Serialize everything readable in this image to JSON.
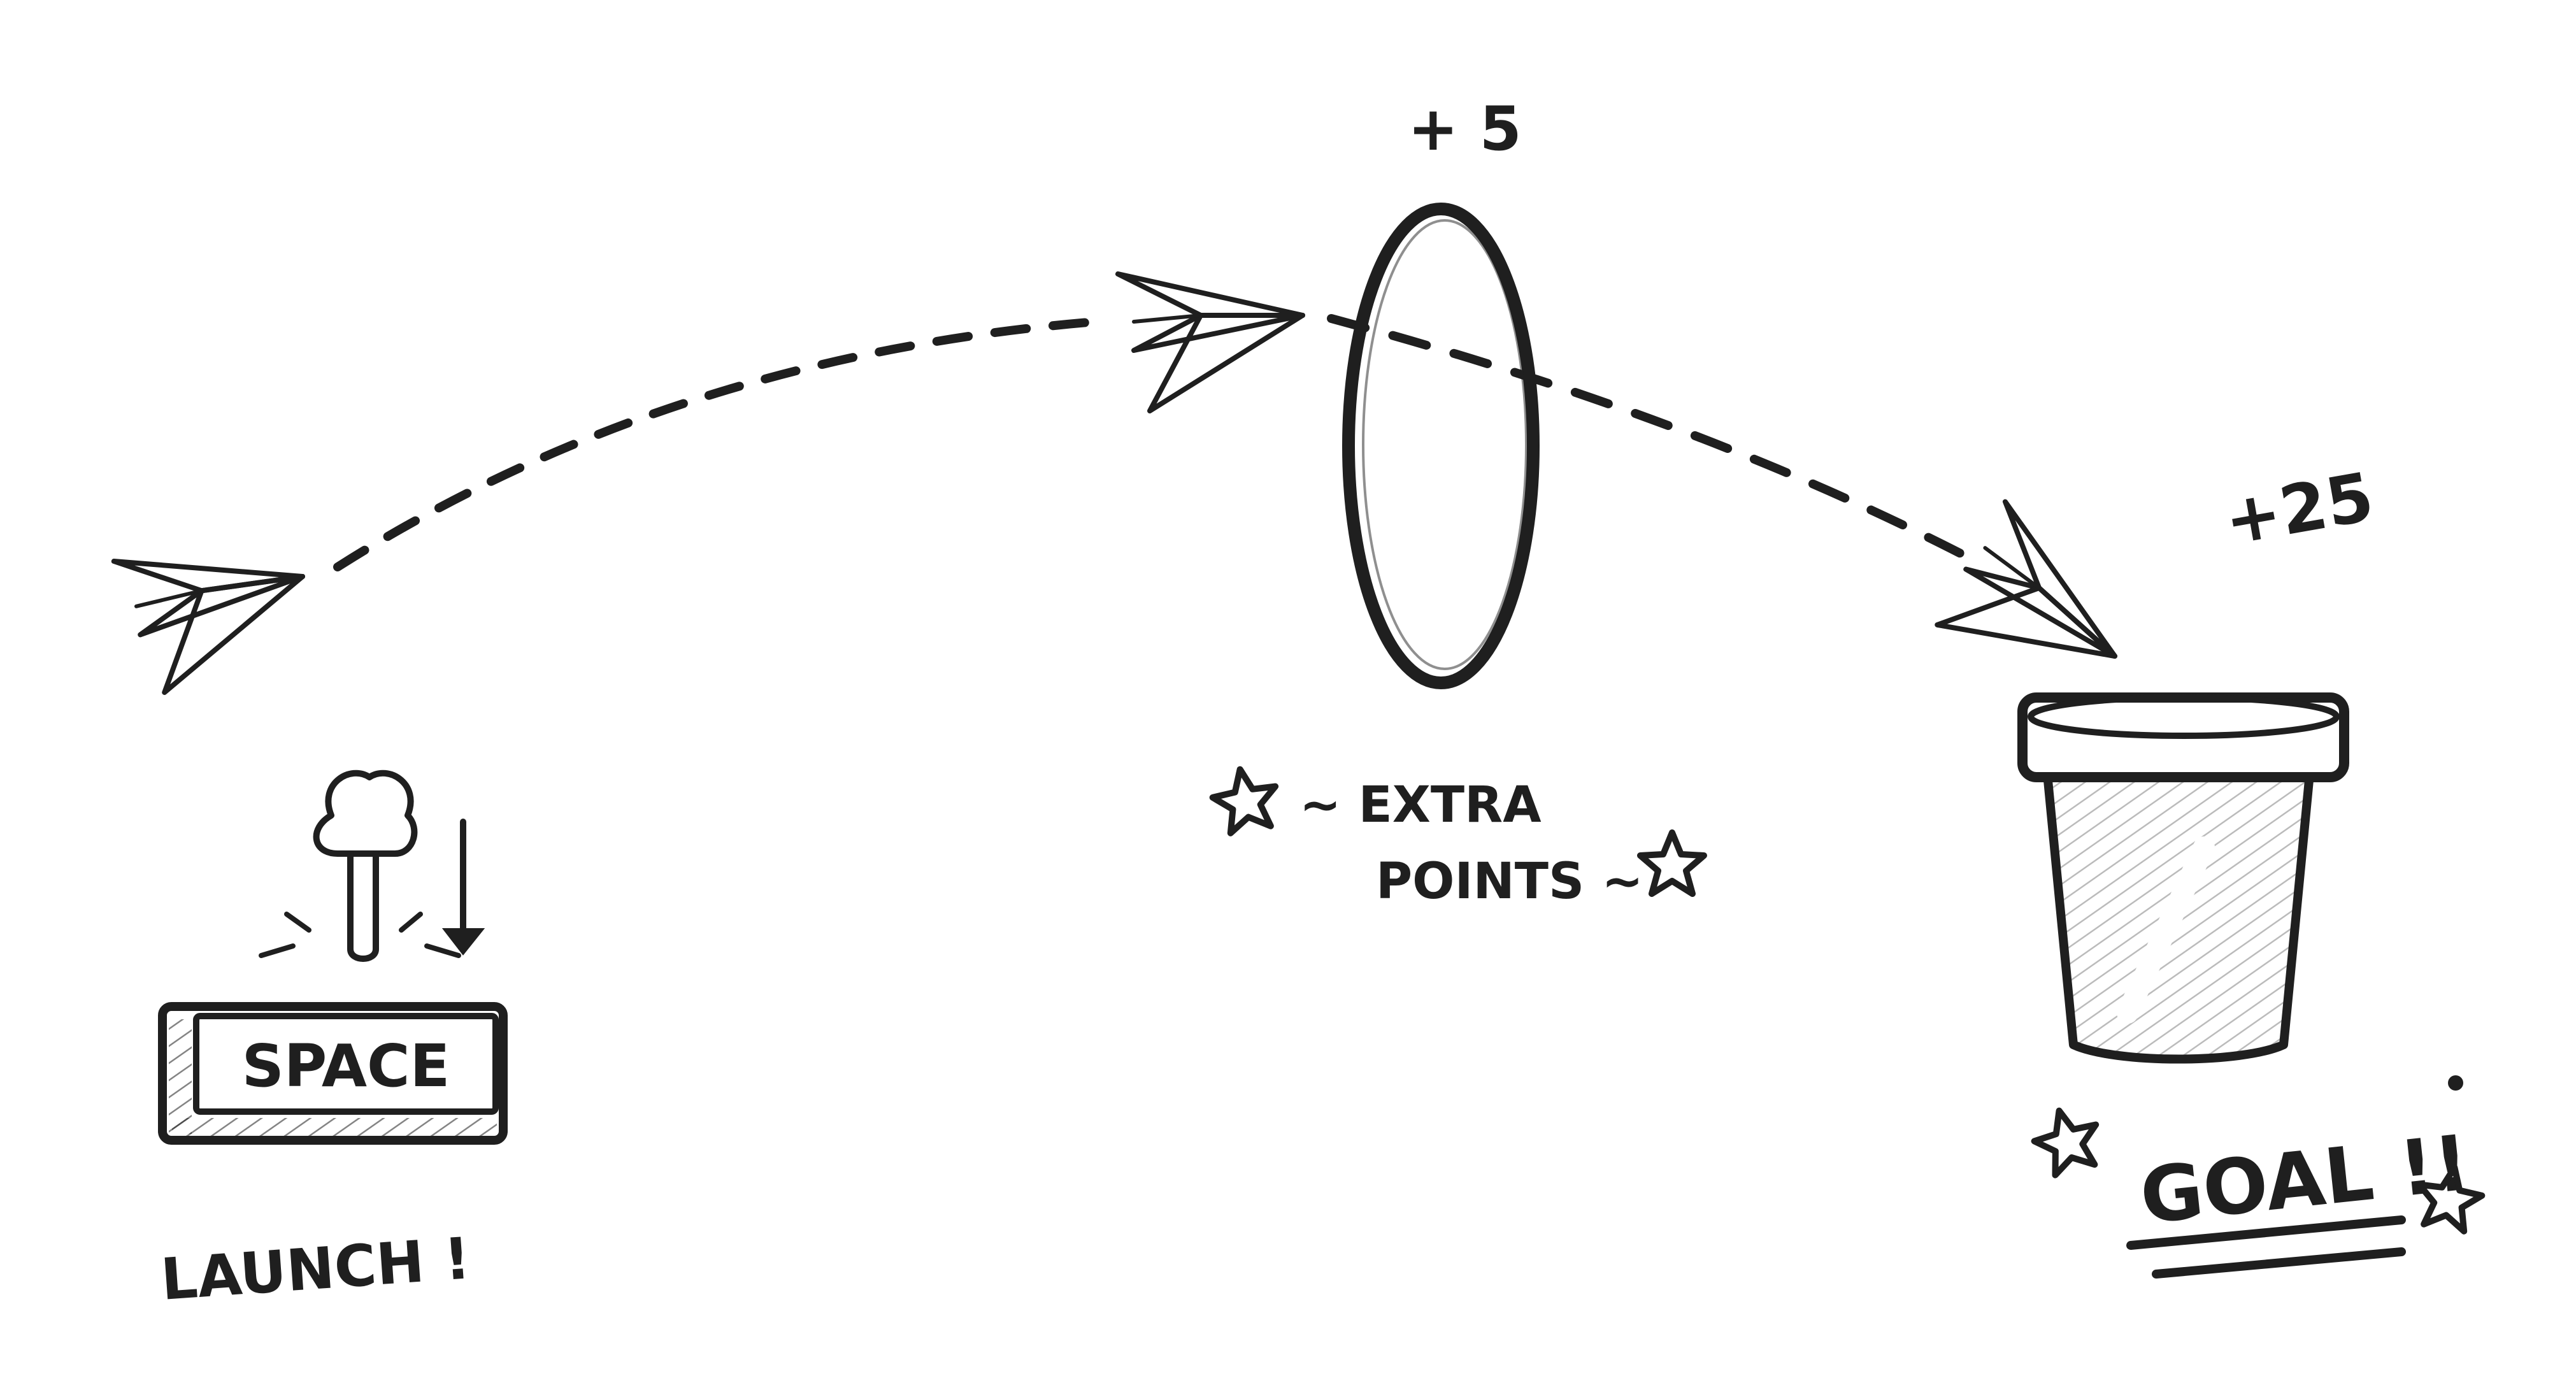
{
  "space_key": {
    "label": "SPACE"
  },
  "launch_caption": "LAUNCH !",
  "ring": {
    "bonus": "+ 5",
    "caption_line1": "~ EXTRA",
    "caption_line2": "POINTS ~"
  },
  "cup": {
    "bonus": "+25",
    "caption": "GOAL !!"
  },
  "icons": [
    "finger-press-icon",
    "down-arrow-icon",
    "paper-plane-icon",
    "ring-icon",
    "cup-icon",
    "star-icon"
  ],
  "colors": {
    "ink": "#1f1f1f",
    "paper": "#ffffff"
  }
}
